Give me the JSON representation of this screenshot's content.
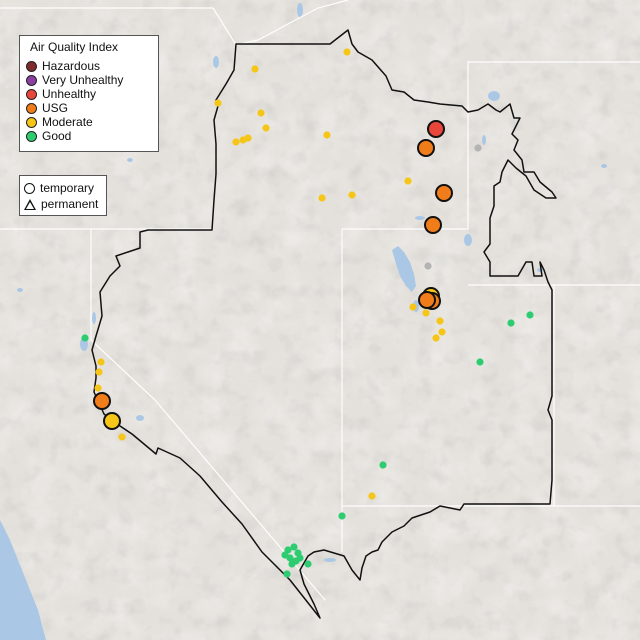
{
  "legend": {
    "title": "Air Quality Index",
    "categories": [
      {
        "label": "Hazardous",
        "color": "#7e2b2b"
      },
      {
        "label": "Very Unhealthy",
        "color": "#8b3fa0"
      },
      {
        "label": "Unhealthy",
        "color": "#e8463a"
      },
      {
        "label": "USG",
        "color": "#f07d1a"
      },
      {
        "label": "Moderate",
        "color": "#f5c518"
      },
      {
        "label": "Good",
        "color": "#2ecc71"
      }
    ]
  },
  "shape_legend": {
    "items": [
      {
        "label": "temporary",
        "shape": "circle"
      },
      {
        "label": "permanent",
        "shape": "triangle"
      }
    ]
  },
  "colors": {
    "no_data": "#b4b4b4",
    "land": "#e4e1dc",
    "water": "#aac8e6",
    "boundary": "#111111"
  }
}
